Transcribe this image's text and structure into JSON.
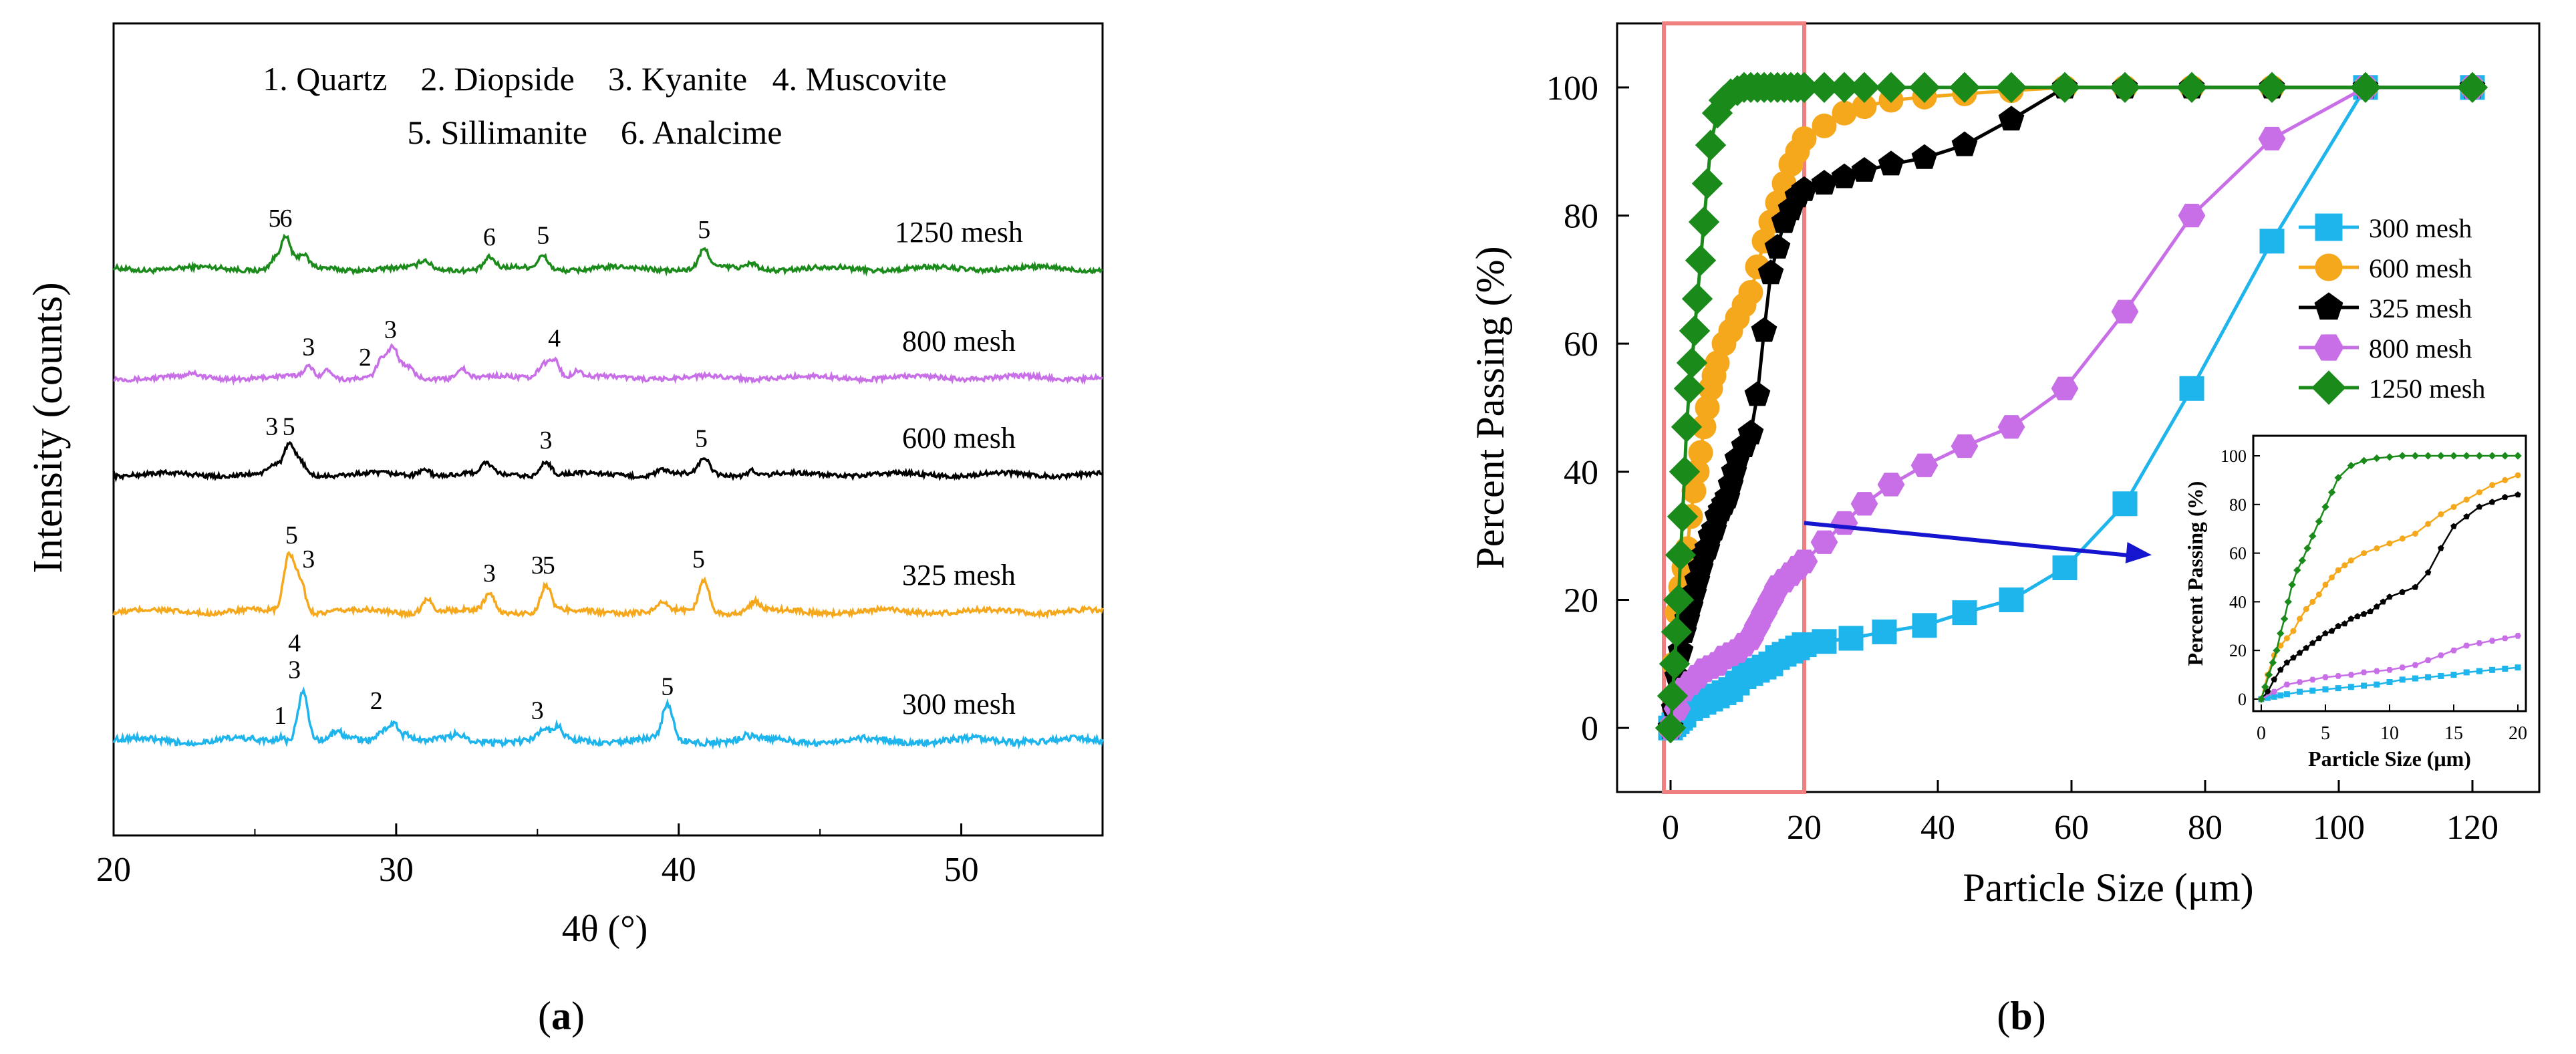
{
  "panel_a": {
    "label": "a",
    "xlabel": "4θ (°)",
    "ylabel": "Intensity (counts)",
    "xticks": [
      "20",
      "30",
      "40",
      "50"
    ],
    "legend_line1": "1. Quartz    2. Diopside    3. Kyanite   4. Muscovite",
    "legend_line2": "5. Sillimanite    6. Analcime"
  },
  "panel_b": {
    "label": "b",
    "xlabel": "Particle Size (μm)",
    "ylabel": "Percent Passing (%)",
    "xticks": [
      "0",
      "20",
      "40",
      "60",
      "80",
      "100",
      "120"
    ],
    "yticks": [
      "0",
      "20",
      "40",
      "60",
      "80",
      "100"
    ],
    "inset": {
      "xlabel": "Particle Size (μm)",
      "ylabel": "Percent Passing (%)",
      "xticks": [
        "0",
        "5",
        "10",
        "15",
        "20"
      ],
      "yticks": [
        "0",
        "20",
        "40",
        "60",
        "80",
        "100"
      ]
    }
  },
  "chart_data": [
    {
      "type": "line",
      "title": "",
      "xlabel": "4θ (°)",
      "ylabel": "Intensity (counts)",
      "xlim": [
        20,
        55
      ],
      "series": [
        {
          "name": "1250 mesh",
          "color": "#1a8a1a",
          "offset": 4,
          "peaks": [
            [
              25.7,
              0.5
            ],
            [
              26.1,
              1.6
            ],
            [
              26.7,
              0.7
            ],
            [
              31.0,
              0.4
            ],
            [
              33.3,
              0.6
            ],
            [
              35.2,
              0.7
            ],
            [
              40.9,
              1.0
            ],
            [
              42.6,
              0.3
            ]
          ],
          "annotations": [
            {
              "text": "5",
              "x": 25.7
            },
            {
              "text": "6",
              "x": 26.1
            },
            {
              "text": "6",
              "x": 33.3
            },
            {
              "text": "5",
              "x": 35.2
            },
            {
              "text": "5",
              "x": 40.9
            }
          ]
        },
        {
          "name": "800 mesh",
          "color": "#c86fe8",
          "offset": 3,
          "peaks": [
            [
              22.8,
              0.2
            ],
            [
              26.9,
              0.6
            ],
            [
              27.6,
              0.5
            ],
            [
              29.5,
              1.0
            ],
            [
              29.9,
              1.6
            ],
            [
              30.4,
              0.6
            ],
            [
              32.3,
              0.6
            ],
            [
              35.2,
              0.8
            ],
            [
              35.6,
              1.1
            ],
            [
              36.4,
              0.4
            ]
          ],
          "annotations": [
            {
              "text": "3",
              "x": 26.9
            },
            {
              "text": "2",
              "x": 28.9
            },
            {
              "text": "3",
              "x": 29.8
            },
            {
              "text": "4",
              "x": 35.6
            }
          ]
        },
        {
          "name": "600 mesh",
          "color": "#000000",
          "offset": 2,
          "peaks": [
            [
              25.7,
              0.5
            ],
            [
              26.2,
              1.6
            ],
            [
              26.6,
              0.8
            ],
            [
              31.0,
              0.4
            ],
            [
              33.2,
              0.6
            ],
            [
              35.3,
              0.8
            ],
            [
              39.4,
              0.3
            ],
            [
              40.9,
              0.9
            ],
            [
              42.6,
              0.3
            ]
          ],
          "annotations": [
            {
              "text": "3",
              "x": 25.6
            },
            {
              "text": "5",
              "x": 26.2
            },
            {
              "text": "3",
              "x": 35.3
            },
            {
              "text": "5",
              "x": 40.8
            }
          ]
        },
        {
          "name": "325 mesh",
          "color": "#f5a81c",
          "offset": 1,
          "peaks": [
            [
              26.2,
              2.8
            ],
            [
              26.6,
              1.6
            ],
            [
              31.1,
              0.7
            ],
            [
              33.3,
              0.9
            ],
            [
              35.3,
              1.3
            ],
            [
              39.4,
              0.4
            ],
            [
              40.9,
              1.6
            ],
            [
              42.7,
              0.5
            ]
          ],
          "annotations": [
            {
              "text": "5",
              "x": 26.3
            },
            {
              "text": "3",
              "x": 26.9
            },
            {
              "text": "3",
              "x": 33.3
            },
            {
              "text": "3",
              "x": 35.0
            },
            {
              "text": "5",
              "x": 35.4
            },
            {
              "text": "5",
              "x": 40.7
            }
          ]
        },
        {
          "name": "300 mesh",
          "color": "#1eb4ec",
          "offset": 0,
          "peaks": [
            [
              25.9,
              0.2
            ],
            [
              26.7,
              2.1
            ],
            [
              27.9,
              0.3
            ],
            [
              29.5,
              0.4
            ],
            [
              29.9,
              0.8
            ],
            [
              30.4,
              0.3
            ],
            [
              32.2,
              0.2
            ],
            [
              35.2,
              0.4
            ],
            [
              35.7,
              0.5
            ],
            [
              39.6,
              1.4
            ],
            [
              42.4,
              0.15
            ],
            [
              52.4,
              0.1
            ]
          ],
          "annotations": [
            {
              "text": "1",
              "x": 25.9
            },
            {
              "text": "3",
              "x": 26.4
            },
            {
              "text": "4",
              "x": 26.4
            },
            {
              "text": "2",
              "x": 29.3
            },
            {
              "text": "3",
              "x": 35.0
            },
            {
              "text": "5",
              "x": 39.6
            }
          ]
        }
      ]
    },
    {
      "type": "line",
      "title": "",
      "xlabel": "Particle Size (μm)",
      "ylabel": "Percent Passing (%)",
      "xlim": [
        -8,
        130
      ],
      "ylim": [
        -10,
        110
      ],
      "highlight_box": {
        "x": [
          -1,
          20
        ],
        "y": [
          -10,
          110
        ],
        "color": "#f08080"
      },
      "series": [
        {
          "name": "300 mesh",
          "color": "#1eb4ec",
          "marker": "square",
          "x": [
            0,
            0.5,
            1,
            1.5,
            2,
            3,
            4,
            5,
            6,
            7,
            8,
            9,
            10,
            11,
            12,
            13,
            14,
            15,
            16,
            17,
            18,
            19,
            20,
            23,
            27,
            32,
            38,
            44,
            51,
            59,
            68,
            78,
            90,
            104,
            120
          ],
          "y": [
            0,
            0.5,
            1,
            1.5,
            2,
            3,
            3.5,
            4,
            4.5,
            5,
            5.5,
            6,
            7,
            8,
            8.5,
            9,
            9.5,
            10,
            11,
            11.5,
            12,
            12.5,
            13,
            13.5,
            14,
            15,
            16,
            18,
            20,
            25,
            35,
            53,
            76,
            100,
            100
          ]
        },
        {
          "name": "600 mesh",
          "color": "#f5a81c",
          "marker": "circle",
          "x": [
            0,
            0.5,
            1,
            1.5,
            2,
            2.5,
            3,
            3.5,
            4,
            4.5,
            5,
            5.5,
            6,
            6.5,
            7,
            8,
            9,
            10,
            11,
            12,
            13,
            14,
            15,
            16,
            17,
            18,
            19,
            20,
            23,
            26,
            29,
            33,
            38,
            44,
            51,
            59,
            68,
            78,
            90,
            104,
            120
          ],
          "y": [
            0,
            10,
            18,
            22,
            25,
            28,
            33,
            37,
            40,
            43,
            47,
            50,
            53,
            55,
            57,
            60,
            62,
            64,
            66,
            68,
            72,
            76,
            79,
            82,
            85,
            88,
            90,
            92,
            94,
            96,
            97,
            98,
            98.5,
            99,
            99.5,
            100,
            100,
            100,
            100,
            100,
            100
          ]
        },
        {
          "name": "325 mesh",
          "color": "#000000",
          "marker": "pentagon",
          "x": [
            0,
            0.5,
            1,
            1.5,
            2,
            2.5,
            3,
            3.5,
            4,
            4.5,
            5,
            5.5,
            6,
            6.5,
            7,
            7.5,
            8,
            8.5,
            9,
            9.5,
            10,
            11,
            12,
            13,
            14,
            15,
            16,
            17,
            18,
            19,
            20,
            23,
            26,
            29,
            33,
            38,
            44,
            51,
            59,
            68,
            78,
            90,
            104,
            120
          ],
          "y": [
            0,
            3,
            8,
            12,
            15,
            17,
            19,
            21,
            23,
            25,
            27,
            28,
            30,
            31,
            33,
            34,
            35,
            36,
            38,
            40,
            42,
            44,
            46,
            52,
            62,
            71,
            75,
            79,
            81,
            83,
            84,
            85,
            86,
            87,
            88,
            89,
            91,
            95,
            100,
            100,
            100,
            100,
            100,
            100
          ]
        },
        {
          "name": "800 mesh",
          "color": "#c86fe8",
          "marker": "hexagon",
          "x": [
            0,
            1,
            2,
            3,
            4,
            5,
            6,
            7,
            8,
            9,
            10,
            11,
            12,
            13,
            14,
            15,
            16,
            17,
            18,
            19,
            20,
            23,
            26,
            29,
            33,
            38,
            44,
            51,
            59,
            68,
            78,
            90,
            104,
            120
          ],
          "y": [
            0,
            3,
            6,
            7,
            8,
            9,
            9.5,
            10,
            11,
            11.5,
            12,
            13,
            14,
            16,
            18,
            20,
            22,
            23,
            24,
            25,
            26,
            29,
            32,
            35,
            38,
            41,
            44,
            47,
            53,
            65,
            80,
            92,
            100,
            100
          ]
        },
        {
          "name": "1250 mesh",
          "color": "#1a8a1a",
          "marker": "diamond",
          "x": [
            0,
            0.3,
            0.6,
            0.9,
            1.2,
            1.5,
            1.8,
            2.1,
            2.4,
            2.8,
            3.2,
            3.6,
            4,
            4.5,
            5,
            5.5,
            6,
            7,
            8,
            9,
            10,
            11,
            12,
            13,
            14,
            15,
            16,
            17,
            18,
            19,
            20,
            23,
            26,
            29,
            33,
            38,
            44,
            51,
            59,
            68,
            78,
            90,
            104,
            120
          ],
          "y": [
            0,
            5,
            10,
            15,
            20,
            27,
            33,
            40,
            47,
            53,
            57,
            62,
            67,
            73,
            79,
            85,
            91,
            96,
            98,
            99,
            99.5,
            100,
            100,
            100,
            100,
            100,
            100,
            100,
            100,
            100,
            100,
            100,
            100,
            100,
            100,
            100,
            100,
            100,
            100,
            100,
            100,
            100,
            100,
            100
          ]
        }
      ],
      "inset": {
        "xlim": [
          0,
          20
        ],
        "ylim": [
          0,
          100
        ],
        "xlabel": "Particle Size (μm)",
        "ylabel": "Percent Passing (%)",
        "arrow": {
          "from": [
            20,
            32
          ],
          "to": [
            72,
            27
          ],
          "color": "#1515d0"
        }
      }
    }
  ]
}
